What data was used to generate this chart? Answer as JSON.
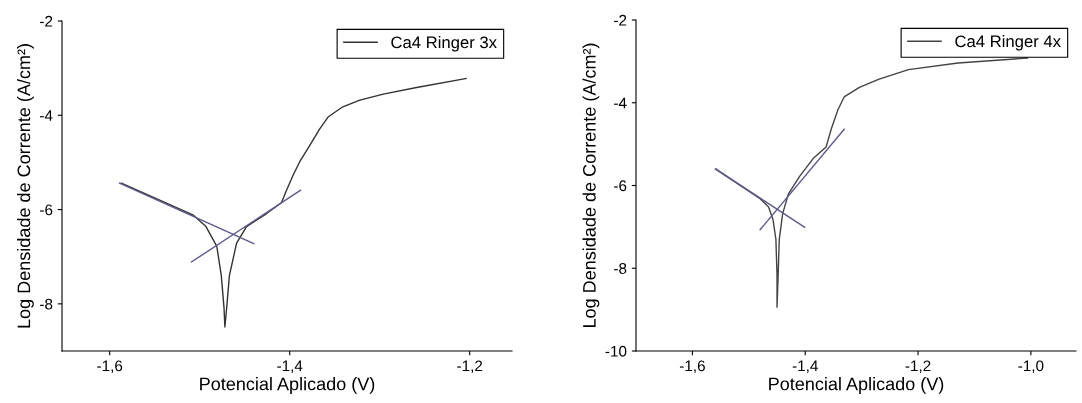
{
  "chart_data": [
    {
      "type": "line",
      "xlabel": "Potencial Aplicado (V)",
      "ylabel": "Log Densidade de Corrente (A/cm²)",
      "xlim": [
        -1.653,
        -1.153
      ],
      "ylim": [
        -9,
        -2
      ],
      "xticks": [
        {
          "value": -1.6,
          "label": "-1,6"
        },
        {
          "value": -1.4,
          "label": "-1,4"
        },
        {
          "value": -1.2,
          "label": "-1,2"
        }
      ],
      "yticks": [
        -8,
        -6,
        -4,
        -2
      ],
      "legend": "top right",
      "grid": false,
      "series": [
        {
          "name": "Ca4 Ringer 3x",
          "color": "#333333",
          "x": [
            -1.587,
            -1.507,
            -1.493,
            -1.481,
            -1.476,
            -1.473,
            -1.472,
            -1.47,
            -1.467,
            -1.459,
            -1.448,
            -1.426,
            -1.409,
            -1.404,
            -1.396,
            -1.389,
            -1.378,
            -1.367,
            -1.357,
            -1.341,
            -1.322,
            -1.296,
            -1.259,
            -1.204
          ],
          "values": [
            -5.44,
            -6.12,
            -6.36,
            -6.78,
            -7.4,
            -8.08,
            -8.49,
            -8.08,
            -7.4,
            -6.71,
            -6.36,
            -6.09,
            -5.85,
            -5.61,
            -5.26,
            -4.99,
            -4.65,
            -4.3,
            -4.03,
            -3.82,
            -3.68,
            -3.55,
            -3.41,
            -3.22
          ]
        },
        {
          "color": "#5a5a8c",
          "x": [
            -1.589,
            -1.44
          ],
          "values": [
            -5.44,
            -6.72
          ]
        },
        {
          "color": "#5a5a8c",
          "x": [
            -1.509,
            -1.388
          ],
          "values": [
            -7.11,
            -5.59
          ]
        }
      ]
    },
    {
      "type": "line",
      "xlabel": "Potencial Aplicado (V)",
      "ylabel": "Log Densidade de Corrente (A/cm²)",
      "xlim": [
        -1.7,
        -0.92
      ],
      "ylim": [
        -10,
        -2
      ],
      "xticks": [
        {
          "value": -1.6,
          "label": "-1,6"
        },
        {
          "value": -1.4,
          "label": "-1,4"
        },
        {
          "value": -1.2,
          "label": "-1,2"
        },
        {
          "value": -1.0,
          "label": "-1,0"
        }
      ],
      "yticks": [
        -10,
        -8,
        -6,
        -4,
        -2
      ],
      "legend": "top right",
      "grid": false,
      "series": [
        {
          "name": "Ca4 Ringer 4x",
          "color": "#444444",
          "x": [
            -1.559,
            -1.48,
            -1.465,
            -1.457,
            -1.452,
            -1.45,
            -1.45,
            -1.448,
            -1.446,
            -1.44,
            -1.43,
            -1.41,
            -1.386,
            -1.363,
            -1.354,
            -1.342,
            -1.331,
            -1.304,
            -1.269,
            -1.217,
            -1.129,
            -1.006
          ],
          "values": [
            -5.6,
            -6.32,
            -6.52,
            -6.83,
            -7.3,
            -8.16,
            -8.94,
            -8.16,
            -7.3,
            -6.68,
            -6.21,
            -5.78,
            -5.35,
            -5.07,
            -4.64,
            -4.17,
            -3.86,
            -3.63,
            -3.43,
            -3.2,
            -3.04,
            -2.92
          ]
        },
        {
          "color": "#5a5a8c",
          "x": [
            -1.559,
            -1.401
          ],
          "values": [
            -5.6,
            -7.01
          ]
        },
        {
          "color": "#5a5a8c",
          "x": [
            -1.48,
            -1.331
          ],
          "values": [
            -7.07,
            -4.64
          ]
        }
      ]
    }
  ]
}
